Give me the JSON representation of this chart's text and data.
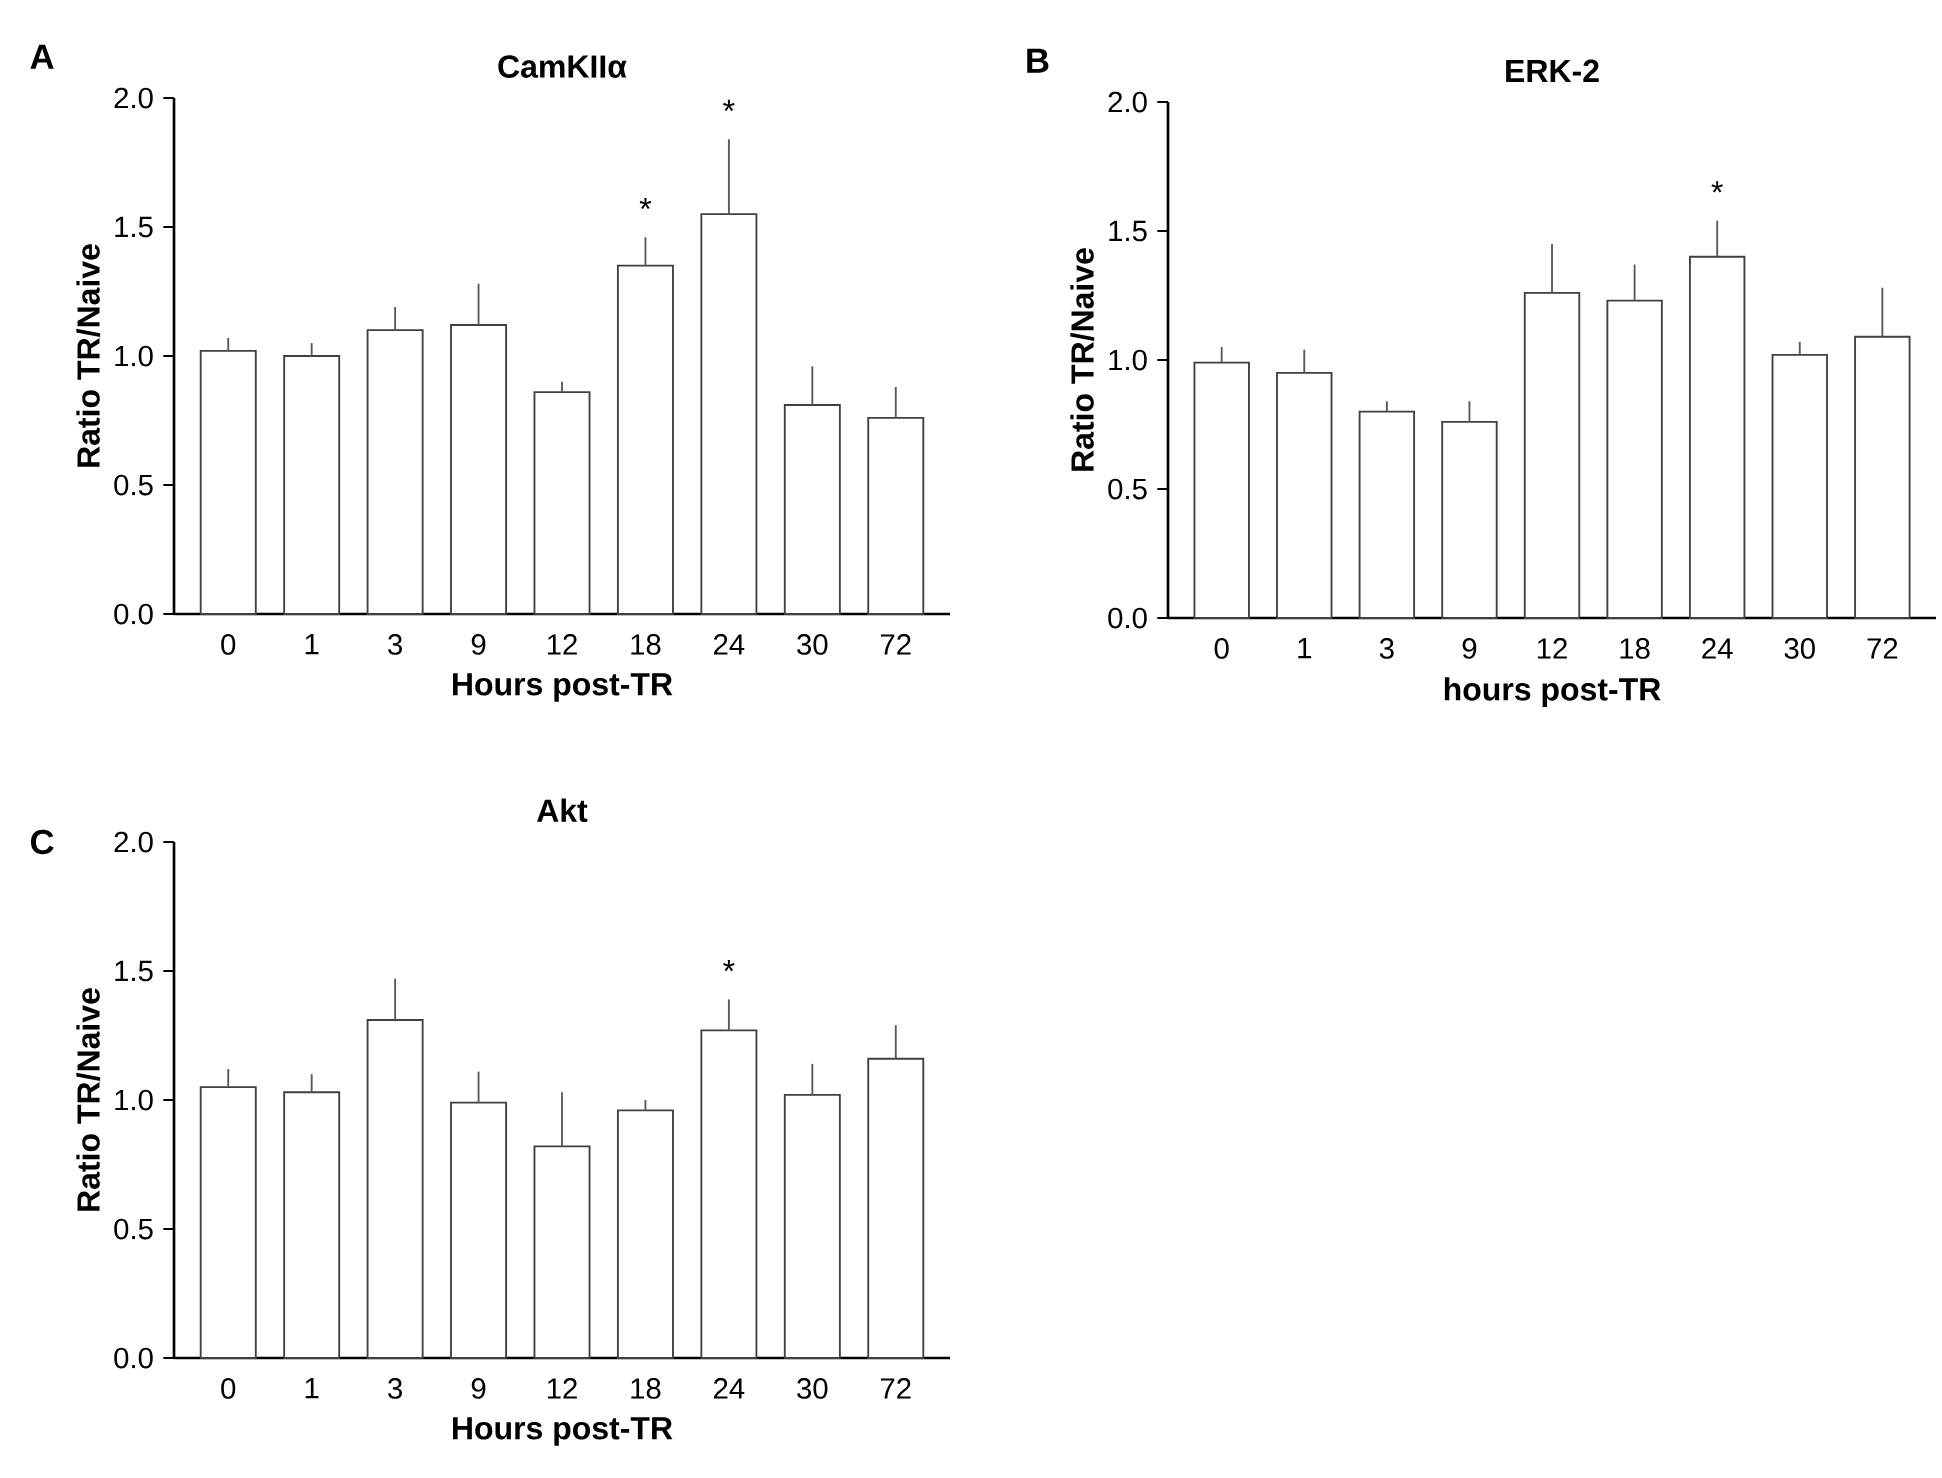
{
  "chart_data": [
    {
      "type": "bar",
      "title": "CamKIIα",
      "xlabel": "Hours post-TR",
      "ylabel": "Ratio TR/Naive",
      "categories": [
        "0",
        "1",
        "3",
        "9",
        "12",
        "18",
        "24",
        "30",
        "72"
      ],
      "values": [
        1.02,
        1.0,
        1.1,
        1.12,
        0.86,
        1.35,
        1.55,
        0.81,
        0.76
      ],
      "errors": [
        [
          1.02,
          1.07
        ],
        [
          1.0,
          1.05
        ],
        [
          1.1,
          1.19
        ],
        [
          1.12,
          1.28
        ],
        [
          0.86,
          0.9
        ],
        [
          1.35,
          1.46
        ],
        [
          1.55,
          1.84
        ],
        [
          0.81,
          0.96
        ],
        [
          0.76,
          0.88
        ]
      ],
      "color": "#ffffff",
      "ylim": [
        0,
        2
      ],
      "yticks": [
        {
          "value": 0,
          "label": "0.0"
        },
        {
          "value": 0.5,
          "label": "0.5"
        },
        {
          "value": 1,
          "label": "1.0"
        },
        {
          "value": 1.5,
          "label": "1.5"
        },
        {
          "value": 2,
          "label": "2.0"
        }
      ],
      "annotations": [
        "A",
        {
          "text": "*",
          "x": "18",
          "y": 1.46
        },
        {
          "text": "*",
          "x": "24",
          "y": 1.84
        }
      ]
    },
    {
      "type": "bar",
      "title": "ERK-2",
      "xlabel": "hours post-TR",
      "ylabel": "Ratio TR/Naive",
      "categories": [
        "0",
        "1",
        "3",
        "9",
        "12",
        "18",
        "24",
        "30",
        "72"
      ],
      "values": [
        0.99,
        0.95,
        0.8,
        0.76,
        1.26,
        1.23,
        1.4,
        1.02,
        1.09
      ],
      "errors": [
        [
          0.99,
          1.05
        ],
        [
          0.95,
          1.04
        ],
        [
          0.8,
          0.84
        ],
        [
          0.76,
          0.84
        ],
        [
          1.26,
          1.45
        ],
        [
          1.23,
          1.37
        ],
        [
          1.4,
          1.54
        ],
        [
          1.02,
          1.07
        ],
        [
          1.09,
          1.28
        ]
      ],
      "color": "#ffffff",
      "ylim": [
        0,
        2
      ],
      "yticks": [
        {
          "value": 0,
          "label": "0.0"
        },
        {
          "value": 0.5,
          "label": "0.5"
        },
        {
          "value": 1,
          "label": "1.0"
        },
        {
          "value": 1.5,
          "label": "1.5"
        },
        {
          "value": 2,
          "label": "2.0"
        }
      ],
      "annotations": [
        "B",
        {
          "text": "*",
          "x": "24",
          "y": 1.54
        }
      ]
    },
    {
      "type": "bar",
      "title": "Akt",
      "xlabel": "Hours post-TR",
      "ylabel": "Ratio TR/Naive",
      "categories": [
        "0",
        "1",
        "3",
        "9",
        "12",
        "18",
        "24",
        "30",
        "72"
      ],
      "values": [
        1.05,
        1.03,
        1.31,
        0.99,
        0.82,
        0.96,
        1.27,
        1.02,
        1.16
      ],
      "errors": [
        [
          1.05,
          1.12
        ],
        [
          1.03,
          1.1
        ],
        [
          1.31,
          1.47
        ],
        [
          0.99,
          1.11
        ],
        [
          0.82,
          1.03
        ],
        [
          0.96,
          1.0
        ],
        [
          1.27,
          1.39
        ],
        [
          1.02,
          1.14
        ],
        [
          1.16,
          1.29
        ]
      ],
      "color": "#ffffff",
      "ylim": [
        0,
        2
      ],
      "yticks": [
        {
          "value": 0,
          "label": "0.0"
        },
        {
          "value": 0.5,
          "label": "0.5"
        },
        {
          "value": 1,
          "label": "1.0"
        },
        {
          "value": 1.5,
          "label": "1.5"
        },
        {
          "value": 2,
          "label": "2.0"
        }
      ],
      "annotations": [
        "C",
        {
          "text": "*",
          "x": "24",
          "y": 1.39
        }
      ]
    }
  ]
}
